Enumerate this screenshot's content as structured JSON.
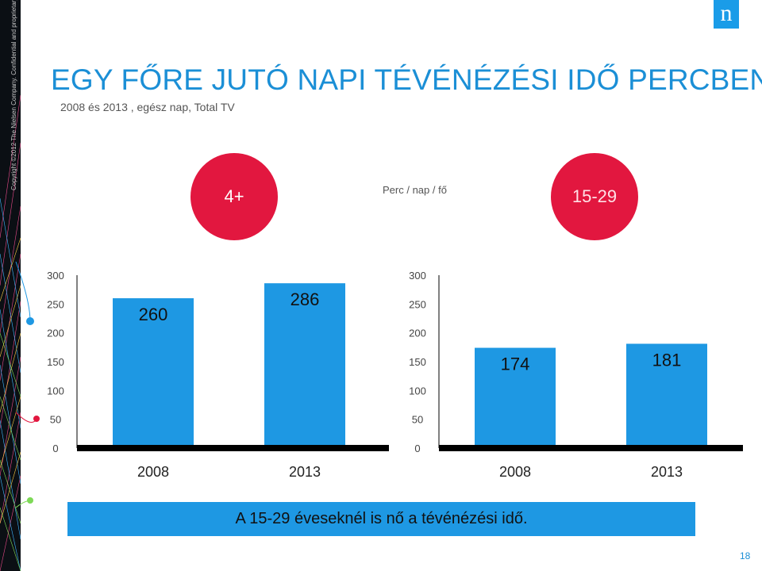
{
  "title": "EGY FŐRE JUTÓ NAPI TÉVÉNÉZÉSI IDŐ PERCBEN",
  "subtitle": "2008 és 2013 , egész nap, Total TV",
  "sidebar_text": "Copyright ©2012 The Nielsen Company. Confidential and proprietary.",
  "logo_letter": "n",
  "unit_label": "Perc / nap / fő",
  "groups": {
    "left": "4+",
    "right": "15-29"
  },
  "colors": {
    "bar": "#1e98e3",
    "accent": "#e2173f",
    "title": "#1b8fd6"
  },
  "chart_data": [
    {
      "type": "bar",
      "title": "4+",
      "categories": [
        "2008",
        "2013"
      ],
      "values": [
        260,
        286
      ],
      "ylim": [
        0,
        300
      ],
      "yticks": [
        0,
        50,
        100,
        150,
        200,
        250,
        300
      ],
      "xlabel": "",
      "ylabel": ""
    },
    {
      "type": "bar",
      "title": "15-29",
      "categories": [
        "2008",
        "2013"
      ],
      "values": [
        174,
        181
      ],
      "ylim": [
        0,
        300
      ],
      "yticks": [
        0,
        50,
        100,
        150,
        200,
        250,
        300
      ],
      "xlabel": "",
      "ylabel": ""
    }
  ],
  "banner": "A 15-29 éveseknél is nő a tévénézési idő.",
  "page_number": "18"
}
